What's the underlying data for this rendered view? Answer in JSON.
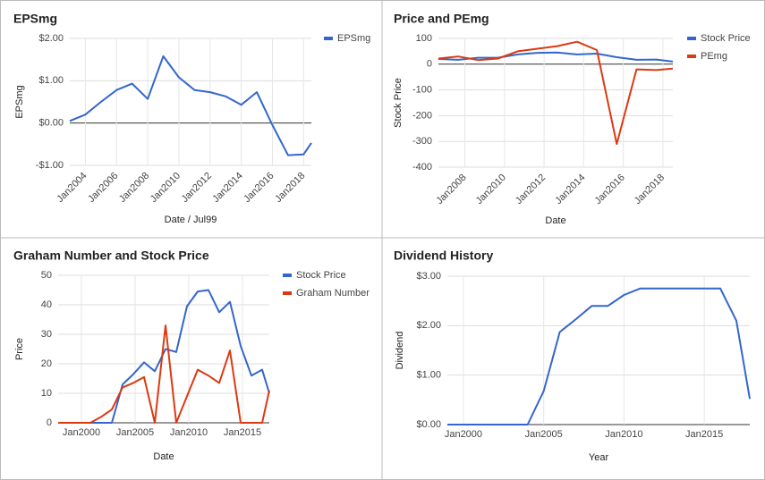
{
  "chart_data": [
    {
      "type": "line",
      "title": "EPSmg",
      "x_label": "Date / Jul99",
      "y_label": "EPSmg",
      "legend": "right",
      "x": [
        "2003-01",
        "2004-01",
        "2005-01",
        "2006-01",
        "2007-01",
        "2008-01",
        "2009-01",
        "2010-01",
        "2011-01",
        "2012-01",
        "2013-01",
        "2014-01",
        "2015-01",
        "2016-01",
        "2017-01",
        "2018-01",
        "2018-07"
      ],
      "series": [
        {
          "name": "EPSmg",
          "color": "#3366cc",
          "values": [
            0.05,
            0.2,
            0.5,
            0.78,
            0.93,
            0.57,
            1.58,
            1.08,
            0.78,
            0.73,
            0.63,
            0.43,
            0.73,
            -0.05,
            -0.76,
            -0.74,
            -0.47
          ]
        }
      ],
      "xlim": [
        "2003-01",
        "2018-07"
      ],
      "xticks": [
        {
          "value": "2004-01",
          "label": "Jan2004"
        },
        {
          "value": "2006-01",
          "label": "Jan2006"
        },
        {
          "value": "2008-01",
          "label": "Jan2008"
        },
        {
          "value": "2010-01",
          "label": "Jan2010"
        },
        {
          "value": "2012-01",
          "label": "Jan2012"
        },
        {
          "value": "2014-01",
          "label": "Jan2014"
        },
        {
          "value": "2016-01",
          "label": "Jan2016"
        },
        {
          "value": "2018-01",
          "label": "Jan2018"
        }
      ],
      "ylim": [
        -1,
        2
      ],
      "yticks": [
        {
          "value": -1,
          "label": "-$1.00"
        },
        {
          "value": 0,
          "label": "$0.00"
        },
        {
          "value": 1,
          "label": "$1.00"
        },
        {
          "value": 2,
          "label": "$2.00"
        }
      ],
      "grid": true
    },
    {
      "type": "line",
      "title": "Price and PEmg",
      "x_label": "Date",
      "y_label": "Stock Price",
      "legend": "right",
      "x": [
        "2006-09",
        "2007-09",
        "2008-09",
        "2009-09",
        "2010-09",
        "2011-09",
        "2012-09",
        "2013-09",
        "2014-09",
        "2015-09",
        "2016-09",
        "2017-09",
        "2018-07"
      ],
      "series": [
        {
          "name": "Stock Price",
          "color": "#3366cc",
          "values": [
            20,
            17,
            25,
            25,
            38,
            44,
            45,
            38,
            41,
            27,
            17,
            18,
            10
          ]
        },
        {
          "name": "PEmg",
          "color": "#dc3912",
          "values": [
            22,
            30,
            16,
            22,
            50,
            60,
            70,
            87,
            55,
            -310,
            -20,
            -23,
            -17
          ]
        }
      ],
      "xlim": [
        "2006-09",
        "2018-07"
      ],
      "xticks": [
        {
          "value": "2008-01",
          "label": "Jan2008"
        },
        {
          "value": "2010-01",
          "label": "Jan2010"
        },
        {
          "value": "2012-01",
          "label": "Jan2012"
        },
        {
          "value": "2014-01",
          "label": "Jan2014"
        },
        {
          "value": "2016-01",
          "label": "Jan2016"
        },
        {
          "value": "2018-01",
          "label": "Jan2018"
        }
      ],
      "ylim": [
        -400,
        100
      ],
      "yticks": [
        -400,
        -300,
        -200,
        -100,
        0,
        100
      ],
      "grid": true
    },
    {
      "type": "line",
      "title": "Graham Number and Stock Price",
      "x_label": "Date",
      "y_label": "Price",
      "legend": "right",
      "x": [
        "1997-11",
        "1998-11",
        "1999-11",
        "2000-11",
        "2001-11",
        "2002-11",
        "2003-11",
        "2004-11",
        "2005-11",
        "2006-11",
        "2007-11",
        "2008-11",
        "2009-11",
        "2010-11",
        "2011-11",
        "2012-11",
        "2013-11",
        "2014-11",
        "2015-11",
        "2016-11",
        "2017-07"
      ],
      "series": [
        {
          "name": "Stock Price",
          "color": "#3366cc",
          "values": [
            0,
            0,
            0,
            0,
            0,
            0,
            13,
            16.5,
            20.5,
            17.5,
            25,
            24,
            39.5,
            44.5,
            45,
            37.5,
            41,
            26,
            16,
            18,
            10
          ]
        },
        {
          "name": "Graham Number",
          "color": "#dc3912",
          "values": [
            0,
            0,
            0,
            0,
            2,
            4.5,
            12,
            13.5,
            15.5,
            0,
            33,
            0,
            9,
            18,
            16,
            13.5,
            24.5,
            0,
            0,
            0,
            11
          ]
        }
      ],
      "xlim": [
        "1997-11",
        "2017-07"
      ],
      "xticks": [
        {
          "value": "2000-01",
          "label": "Jan2000"
        },
        {
          "value": "2005-01",
          "label": "Jan2005"
        },
        {
          "value": "2010-01",
          "label": "Jan2010"
        },
        {
          "value": "2015-01",
          "label": "Jan2015"
        }
      ],
      "ylim": [
        0,
        50
      ],
      "yticks": [
        0,
        10,
        20,
        30,
        40,
        50
      ],
      "grid": true
    },
    {
      "type": "line",
      "title": "Dividend History",
      "x_label": "Year",
      "y_label": "Dividend",
      "x": [
        "1999-01",
        "2000-01",
        "2001-01",
        "2002-01",
        "2003-01",
        "2004-01",
        "2005-01",
        "2006-01",
        "2007-01",
        "2008-01",
        "2009-01",
        "2010-01",
        "2011-01",
        "2012-01",
        "2013-01",
        "2014-01",
        "2015-01",
        "2016-01",
        "2017-01",
        "2017-11"
      ],
      "series": [
        {
          "color": "#3366cc",
          "values": [
            0,
            0,
            0,
            0,
            0,
            0,
            0.68,
            1.87,
            2.13,
            2.4,
            2.4,
            2.62,
            2.75,
            2.75,
            2.75,
            2.75,
            2.75,
            2.75,
            2.1,
            0.52
          ]
        }
      ],
      "xlim": [
        "1999-01",
        "2017-11"
      ],
      "xticks": [
        {
          "value": "2000-01",
          "label": "Jan2000"
        },
        {
          "value": "2005-01",
          "label": "Jan2005"
        },
        {
          "value": "2010-01",
          "label": "Jan2010"
        },
        {
          "value": "2015-01",
          "label": "Jan2015"
        }
      ],
      "ylim": [
        0,
        3
      ],
      "yticks": [
        {
          "value": 0,
          "label": "$0.00"
        },
        {
          "value": 1,
          "label": "$1.00"
        },
        {
          "value": 2,
          "label": "$2.00"
        },
        {
          "value": 3,
          "label": "$3.00"
        }
      ],
      "grid": true
    }
  ]
}
